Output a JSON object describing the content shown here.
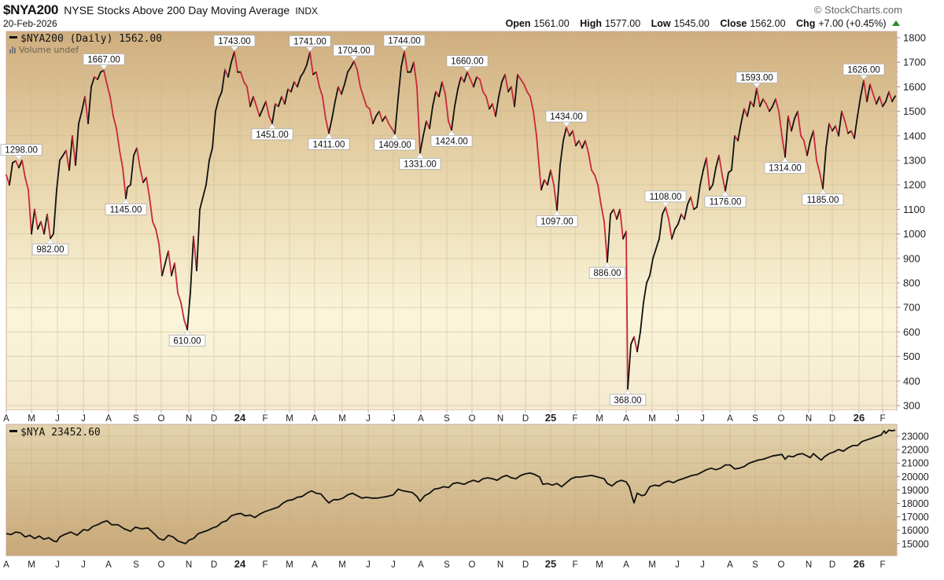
{
  "header": {
    "symbol": "$NYA200",
    "name": "NYSE Stocks Above 200 Day Moving Average",
    "exchange": "INDX",
    "date": "20-Feb-2026",
    "brand": "© StockCharts.com",
    "ohlc": {
      "open_label": "Open",
      "open": "1561.00",
      "high_label": "High",
      "high": "1577.00",
      "low_label": "Low",
      "low": "1545.00",
      "close_label": "Close",
      "close": "1562.00",
      "chg_label": "Chg",
      "chg": "+7.00 (+0.45%)"
    },
    "chg_direction": "up",
    "colors": {
      "up": "#2e8b2e"
    }
  },
  "upper_panel": {
    "legend": "$NYA200 (Daily) 1562.00",
    "volume_legend": "Volume undef"
  },
  "lower_panel": {
    "legend": "$NYA 23452.60"
  },
  "x_axis": {
    "labels": [
      "A",
      "M",
      "J",
      "J",
      "A",
      "S",
      "O",
      "N",
      "D",
      "24",
      "F",
      "M",
      "A",
      "M",
      "J",
      "J",
      "A",
      "S",
      "O",
      "N",
      "D",
      "25",
      "F",
      "M",
      "A",
      "M",
      "J",
      "J",
      "A",
      "S",
      "O",
      "N",
      "D",
      "26",
      "F"
    ]
  },
  "chart_data": [
    {
      "type": "line",
      "title": "$NYA200 NYSE Stocks Above 200 Day Moving Average (Daily)",
      "xlabel": "",
      "ylabel": "",
      "ylim": [
        300,
        1800
      ],
      "yticks": [
        1800,
        1700,
        1600,
        1500,
        1400,
        1300,
        1200,
        1100,
        1000,
        900,
        800,
        700,
        600,
        500,
        400,
        300
      ],
      "x_range": "Apr 2023 – Feb 2026",
      "grid": true,
      "colors": {
        "up": "#111111",
        "down": "#c8283a"
      },
      "last_value": 1562.0,
      "annotations": [
        {
          "label": "1298.00",
          "date_approx": "Apr 2023",
          "value": 1298,
          "type": "high"
        },
        {
          "label": "982.00",
          "date_approx": "late May 2023",
          "value": 982,
          "type": "low"
        },
        {
          "label": "1667.00",
          "date_approx": "late Jul 2023",
          "value": 1667,
          "type": "high"
        },
        {
          "label": "1145.00",
          "date_approx": "late Aug 2023",
          "value": 1145,
          "type": "low"
        },
        {
          "label": "610.00",
          "date_approx": "late Oct 2023",
          "value": 610,
          "type": "low"
        },
        {
          "label": "1743.00",
          "date_approx": "late Dec 2023",
          "value": 1743,
          "type": "high"
        },
        {
          "label": "1451.00",
          "date_approx": "Feb 2024",
          "value": 1451,
          "type": "low"
        },
        {
          "label": "1741.00",
          "date_approx": "late Mar 2024",
          "value": 1741,
          "type": "high"
        },
        {
          "label": "1411.00",
          "date_approx": "mid Apr 2024",
          "value": 1411,
          "type": "low"
        },
        {
          "label": "1704.00",
          "date_approx": "mid May 2024",
          "value": 1704,
          "type": "high"
        },
        {
          "label": "1409.00",
          "date_approx": "early Jul 2024",
          "value": 1409,
          "type": "low"
        },
        {
          "label": "1744.00",
          "date_approx": "mid Jul 2024",
          "value": 1744,
          "type": "high"
        },
        {
          "label": "1331.00",
          "date_approx": "early Aug 2024",
          "value": 1331,
          "type": "low"
        },
        {
          "label": "1424.00",
          "date_approx": "early Sep 2024",
          "value": 1424,
          "type": "low"
        },
        {
          "label": "1660.00",
          "date_approx": "late Sep 2024",
          "value": 1660,
          "type": "high"
        },
        {
          "label": "1097.00",
          "date_approx": "mid Jan 2025",
          "value": 1097,
          "type": "low"
        },
        {
          "label": "1434.00",
          "date_approx": "late Jan 2025",
          "value": 1434,
          "type": "high"
        },
        {
          "label": "886.00",
          "date_approx": "mid Mar 2025",
          "value": 886,
          "type": "low"
        },
        {
          "label": "368.00",
          "date_approx": "early Apr 2025",
          "value": 368,
          "type": "low"
        },
        {
          "label": "1108.00",
          "date_approx": "mid May 2025",
          "value": 1108,
          "type": "high"
        },
        {
          "label": "1176.00",
          "date_approx": "late Jul 2025",
          "value": 1176,
          "type": "low"
        },
        {
          "label": "1593.00",
          "date_approx": "early Sep 2025",
          "value": 1593,
          "type": "high"
        },
        {
          "label": "1314.00",
          "date_approx": "early Oct 2025",
          "value": 1314,
          "type": "low"
        },
        {
          "label": "1185.00",
          "date_approx": "late Nov 2025",
          "value": 1185,
          "type": "low"
        },
        {
          "label": "1626.00",
          "date_approx": "mid Jan 2026",
          "value": 1626,
          "type": "high"
        }
      ],
      "series": [
        {
          "name": "$NYA200",
          "x": [
            "Apr-23",
            "Apr-23",
            "May-23",
            "May-23",
            "Jun-23",
            "Jun-23",
            "Jul-23",
            "Jul-23",
            "Aug-23",
            "Aug-23",
            "Sep-23",
            "Sep-23",
            "Oct-23",
            "Oct-23",
            "Nov-23",
            "Nov-23",
            "Dec-23",
            "Dec-23",
            "Jan-24",
            "Feb-24",
            "Feb-24",
            "Mar-24",
            "Mar-24",
            "Apr-24",
            "Apr-24",
            "May-24",
            "May-24",
            "Jun-24",
            "Jun-24",
            "Jul-24",
            "Jul-24",
            "Aug-24",
            "Aug-24",
            "Sep-24",
            "Sep-24",
            "Oct-24",
            "Oct-24",
            "Nov-24",
            "Nov-24",
            "Dec-24",
            "Dec-24",
            "Jan-25",
            "Jan-25",
            "Jan-25",
            "Feb-25",
            "Feb-25",
            "Mar-25",
            "Mar-25",
            "Apr-25",
            "Apr-25",
            "May-25",
            "May-25",
            "Jun-25",
            "Jun-25",
            "Jul-25",
            "Jul-25",
            "Aug-25",
            "Aug-25",
            "Sep-25",
            "Sep-25",
            "Oct-25",
            "Oct-25",
            "Nov-25",
            "Nov-25",
            "Dec-25",
            "Dec-25",
            "Jan-26",
            "Jan-26",
            "Feb-26",
            "Feb-26"
          ],
          "values": [
            1200,
            1298,
            1050,
            982,
            1350,
            1250,
            1600,
            1667,
            1300,
            1145,
            1250,
            1180,
            950,
            830,
            610,
            1000,
            1450,
            1743,
            1600,
            1451,
            1550,
            1600,
            1741,
            1411,
            1580,
            1704,
            1550,
            1450,
            1409,
            1744,
            1331,
            1480,
            1424,
            1600,
            1660,
            1560,
            1600,
            1500,
            1640,
            1560,
            1150,
            1097,
            1434,
            1350,
            1250,
            886,
            1040,
            960,
            368,
            600,
            950,
            1108,
            1000,
            1150,
            1250,
            1176,
            1400,
            1593,
            1500,
            1314,
            1480,
            1400,
            1185,
            1450,
            1380,
            1500,
            1626,
            1540,
            1520,
            1562
          ]
        }
      ]
    },
    {
      "type": "line",
      "title": "$NYA",
      "xlabel": "",
      "ylabel": "",
      "ylim": [
        14500,
        23500
      ],
      "yticks": [
        23000,
        22000,
        21000,
        20000,
        19000,
        18000,
        17000,
        16000,
        15000
      ],
      "grid": true,
      "last_value": 23452.6,
      "series": [
        {
          "name": "$NYA",
          "x": [
            "Apr-23",
            "May-23",
            "Jun-23",
            "Jul-23",
            "Aug-23",
            "Sep-23",
            "Oct-23",
            "Nov-23",
            "Dec-23",
            "Jan-24",
            "Feb-24",
            "Mar-24",
            "Apr-24",
            "May-24",
            "Jun-24",
            "Jul-24",
            "Aug-24",
            "Sep-24",
            "Oct-24",
            "Nov-24",
            "Dec-24",
            "Jan-25",
            "Feb-25",
            "Mar-25",
            "Apr-25",
            "May-25",
            "Jun-25",
            "Jul-25",
            "Aug-25",
            "Sep-25",
            "Oct-25",
            "Nov-25",
            "Dec-25",
            "Jan-26",
            "Feb-26"
          ],
          "values": [
            15400,
            15300,
            15100,
            15700,
            16200,
            15800,
            15300,
            15100,
            16300,
            16900,
            17300,
            17800,
            18000,
            17800,
            17900,
            18200,
            18300,
            18700,
            19300,
            19700,
            19600,
            19300,
            19500,
            19200,
            17600,
            18900,
            19600,
            20000,
            20300,
            20800,
            21200,
            21300,
            21500,
            22200,
            23450
          ]
        }
      ]
    }
  ]
}
